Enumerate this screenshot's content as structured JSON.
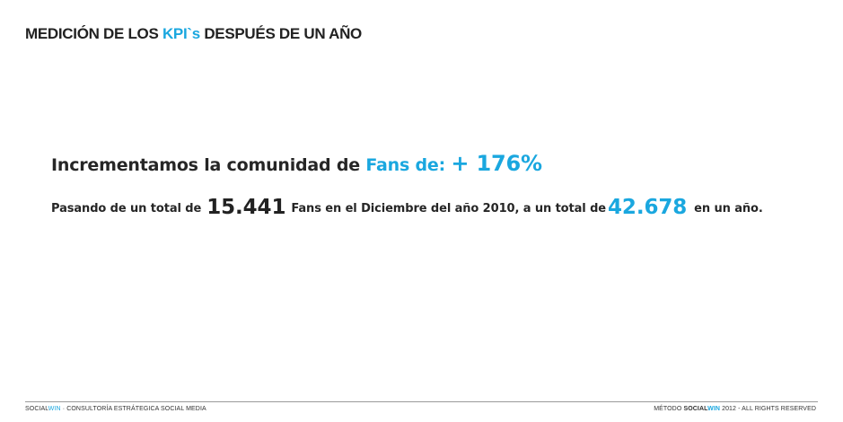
{
  "title": {
    "prefix": "MEDICIÓN DE LOS ",
    "accent": "KPI`s",
    "suffix": " DESPUÉS DE UN AÑO"
  },
  "headline": {
    "text": "Incrementamos la comunidad de ",
    "accent_label": "Fans de: ",
    "accent_value": "+ 176%"
  },
  "detail": {
    "part1": "Pasando de un total de",
    "value_start": "15.441",
    "part2": "Fans en el Diciembre del año 2010, a un total de",
    "value_end": "42.678",
    "part3": "en un año."
  },
  "footer": {
    "left_brand_social": "SOCIAL",
    "left_brand_win": "WIN",
    "left_text": " · CONSULTORÍA ESTRÁTEGICA SOCIAL MEDIA",
    "right_prefix": "MÉTODO ",
    "right_brand_social": "SOCIAL",
    "right_brand_win": "WIN",
    "right_suffix": " 2012 - ALL RIGHTS RESERVED"
  },
  "colors": {
    "accent": "#1aa7df",
    "text": "#262626",
    "footer_rule": "#9a9a9a"
  }
}
